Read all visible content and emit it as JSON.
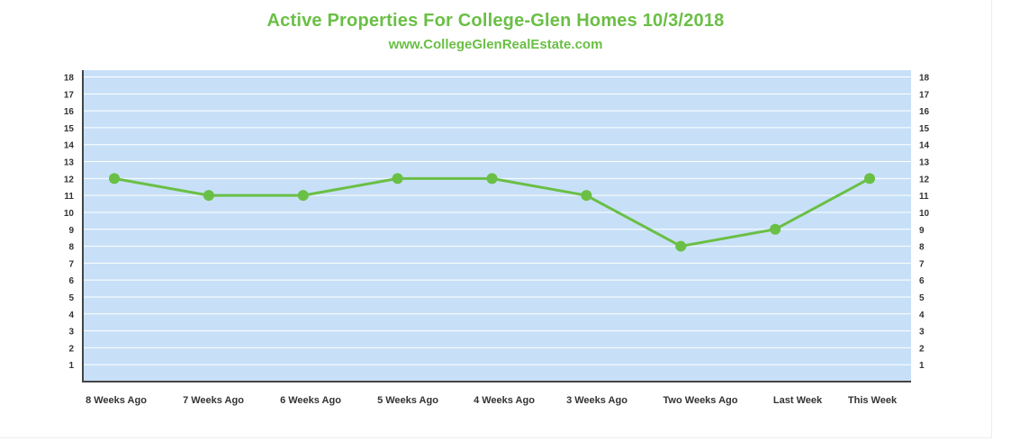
{
  "chart_data": {
    "type": "line",
    "title": "Active Properties For College-Glen Homes 10/3/2018",
    "subtitle": "www.CollegeGlenRealEstate.com",
    "categories": [
      "8 Weeks Ago",
      "7 Weeks Ago",
      "6 Weeks Ago",
      "5 Weeks Ago",
      "4 Weeks Ago",
      "3 Weeks Ago",
      "Two Weeks Ago",
      "Last Week",
      "This Week"
    ],
    "series": [
      {
        "name": "Active Properties",
        "values": [
          12,
          11,
          11,
          12,
          12,
          11,
          8,
          9,
          12
        ]
      }
    ],
    "ylim": [
      0,
      18
    ],
    "yticks": [
      1,
      2,
      3,
      4,
      5,
      6,
      7,
      8,
      9,
      10,
      11,
      12,
      13,
      14,
      15,
      16,
      17,
      18
    ],
    "xlabel": "",
    "ylabel": "",
    "grid": true,
    "colors": {
      "line": "#6abf45",
      "plot_background": "#c7e0f7",
      "grid": "#ffffff",
      "axis": "#444444",
      "title": "#6abf45"
    }
  }
}
